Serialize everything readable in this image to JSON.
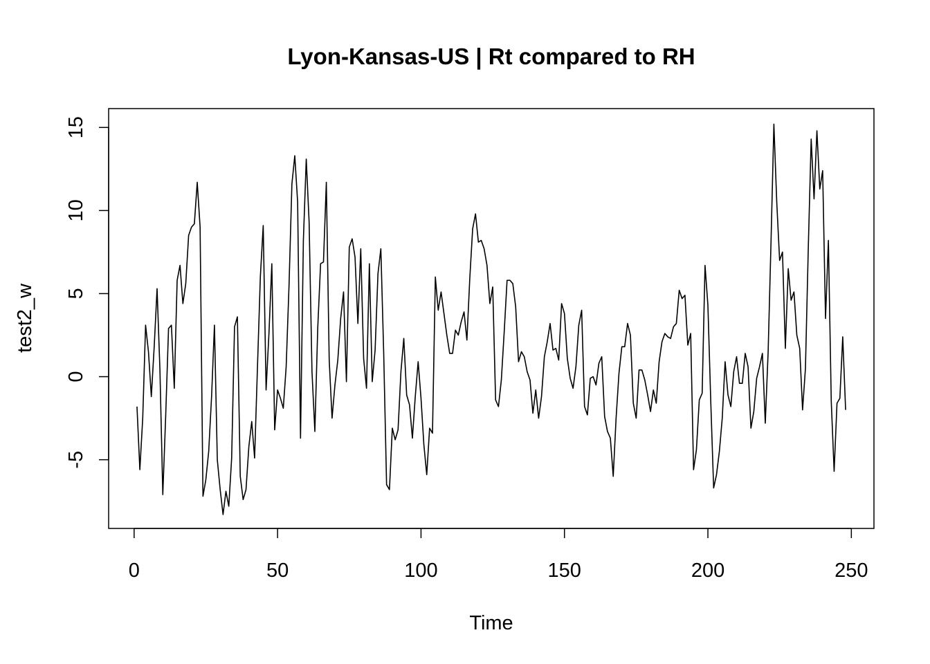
{
  "chart_data": {
    "type": "line",
    "title": "Lyon-Kansas-US | Rt compared to RH",
    "xlabel": "Time",
    "ylabel": "test2_w",
    "xlim": [
      1,
      248
    ],
    "ylim": [
      -8.2,
      15.2
    ],
    "x_ticks": [
      0,
      50,
      100,
      150,
      200,
      250
    ],
    "y_ticks": [
      -5,
      0,
      5,
      10,
      15
    ],
    "x_tick_labels": [
      "0",
      "50",
      "100",
      "150",
      "200",
      "250"
    ],
    "y_tick_labels": [
      "-5",
      "0",
      "5",
      "10",
      "15"
    ],
    "grid": false,
    "series": [
      {
        "color": "#000000",
        "x": [
          1,
          2,
          3,
          4,
          5,
          6,
          7,
          8,
          9,
          10,
          11,
          12,
          13,
          14,
          15,
          16,
          17,
          18,
          19,
          20,
          21,
          22,
          23,
          24,
          25,
          26,
          27,
          28,
          29,
          30,
          31,
          32,
          33,
          34,
          35,
          36,
          37,
          38,
          39,
          40,
          41,
          42,
          43,
          44,
          45,
          46,
          47,
          48,
          49,
          50,
          51,
          52,
          53,
          54,
          55,
          56,
          57,
          58,
          59,
          60,
          61,
          62,
          63,
          64,
          65,
          66,
          67,
          68,
          69,
          70,
          71,
          72,
          73,
          74,
          75,
          76,
          77,
          78,
          79,
          80,
          81,
          82,
          83,
          84,
          85,
          86,
          87,
          88,
          89,
          90,
          91,
          92,
          93,
          94,
          95,
          96,
          97,
          98,
          99,
          100,
          101,
          102,
          103,
          104,
          105,
          106,
          107,
          108,
          109,
          110,
          111,
          112,
          113,
          114,
          115,
          116,
          117,
          118,
          119,
          120,
          121,
          122,
          123,
          124,
          125,
          126,
          127,
          128,
          129,
          130,
          131,
          132,
          133,
          134,
          135,
          136,
          137,
          138,
          139,
          140,
          141,
          142,
          143,
          144,
          145,
          146,
          147,
          148,
          149,
          150,
          151,
          152,
          153,
          154,
          155,
          156,
          157,
          158,
          159,
          160,
          161,
          162,
          163,
          164,
          165,
          166,
          167,
          168,
          169,
          170,
          171,
          172,
          173,
          174,
          175,
          176,
          177,
          178,
          179,
          180,
          181,
          182,
          183,
          184,
          185,
          186,
          187,
          188,
          189,
          190,
          191,
          192,
          193,
          194,
          195,
          196,
          197,
          198,
          199,
          200,
          201,
          202,
          203,
          204,
          205,
          206,
          207,
          208,
          209,
          210,
          211,
          212,
          213,
          214,
          215,
          216,
          217,
          218,
          219,
          220,
          221,
          222,
          223,
          224,
          225,
          226,
          227,
          228,
          229,
          230,
          231,
          232,
          233,
          234,
          235,
          236,
          237,
          238,
          239,
          240,
          241,
          242,
          243,
          244,
          245,
          246,
          247,
          248
        ],
        "values": [
          -1.8,
          -5.6,
          -2.5,
          3.1,
          1.5,
          -1.2,
          1.8,
          5.3,
          0.4,
          -7.1,
          -2.4,
          2.9,
          3.1,
          -0.7,
          5.8,
          6.7,
          4.4,
          5.6,
          8.5,
          9.0,
          9.2,
          11.7,
          9.0,
          -7.2,
          -6.2,
          -4.5,
          -1.2,
          3.1,
          -5.0,
          -6.8,
          -8.3,
          -6.9,
          -7.8,
          -4.9,
          3.0,
          3.6,
          -6.0,
          -7.4,
          -6.8,
          -4.2,
          -2.7,
          -4.9,
          0.6,
          6.0,
          9.1,
          -0.8,
          2.6,
          6.8,
          -3.2,
          -0.8,
          -1.3,
          -1.9,
          0.6,
          5.5,
          11.6,
          13.3,
          10.5,
          -3.7,
          8.2,
          13.1,
          9.3,
          0.3,
          -3.3,
          2.9,
          6.8,
          6.9,
          11.7,
          1.0,
          -2.5,
          -0.5,
          1.0,
          3.5,
          5.1,
          -0.3,
          7.8,
          8.3,
          7.2,
          3.2,
          7.7,
          1.1,
          -0.7,
          6.8,
          -0.3,
          1.6,
          6.2,
          7.7,
          1.4,
          -6.5,
          -6.8,
          -3.1,
          -3.8,
          -3.2,
          0.3,
          2.3,
          -1.1,
          -1.7,
          -3.7,
          -1.2,
          0.9,
          -1.3,
          -4.1,
          -5.9,
          -3.1,
          -3.4,
          6.0,
          4.0,
          5.1,
          3.8,
          2.5,
          1.4,
          1.4,
          2.8,
          2.5,
          3.3,
          3.9,
          2.2,
          5.9,
          8.9,
          9.8,
          8.1,
          8.2,
          7.7,
          6.7,
          4.4,
          5.4,
          -1.4,
          -1.8,
          -0.2,
          2.7,
          5.8,
          5.8,
          5.6,
          4.2,
          0.9,
          1.5,
          1.2,
          0.3,
          -0.2,
          -2.2,
          -0.8,
          -2.5,
          -1.2,
          1.2,
          2.1,
          3.2,
          1.6,
          1.7,
          1.0,
          4.4,
          3.8,
          1.1,
          -0.1,
          -0.7,
          0.6,
          3.1,
          4.0,
          -1.8,
          -2.3,
          -0.1,
          0.0,
          -0.5,
          0.8,
          1.2,
          -2.4,
          -3.3,
          -3.7,
          -6.0,
          -2.5,
          0.2,
          1.8,
          1.8,
          3.2,
          2.5,
          -1.6,
          -2.5,
          0.4,
          0.4,
          -0.2,
          -1.1,
          -2.1,
          -0.8,
          -1.6,
          0.9,
          2.1,
          2.6,
          2.4,
          2.3,
          3.0,
          3.2,
          5.2,
          4.7,
          4.9,
          1.9,
          2.6,
          -5.6,
          -4.4,
          -1.4,
          -1.0,
          6.7,
          4.3,
          -1.5,
          -6.7,
          -5.9,
          -4.5,
          -2.5,
          0.9,
          -1.1,
          -1.8,
          0.3,
          1.2,
          -0.4,
          -0.4,
          1.4,
          0.6,
          -3.1,
          -2.1,
          -0.1,
          0.6,
          1.4,
          -2.8,
          1.5,
          8.1,
          15.2,
          10.5,
          7.0,
          7.5,
          1.7,
          6.5,
          4.6,
          5.1,
          2.5,
          1.7,
          -2.0,
          0.5,
          7.8,
          14.3,
          10.7,
          14.8,
          11.3,
          12.4,
          3.5,
          8.2,
          -1.5,
          -5.7,
          -1.6,
          -1.3,
          2.4,
          -2.0
        ]
      }
    ]
  }
}
